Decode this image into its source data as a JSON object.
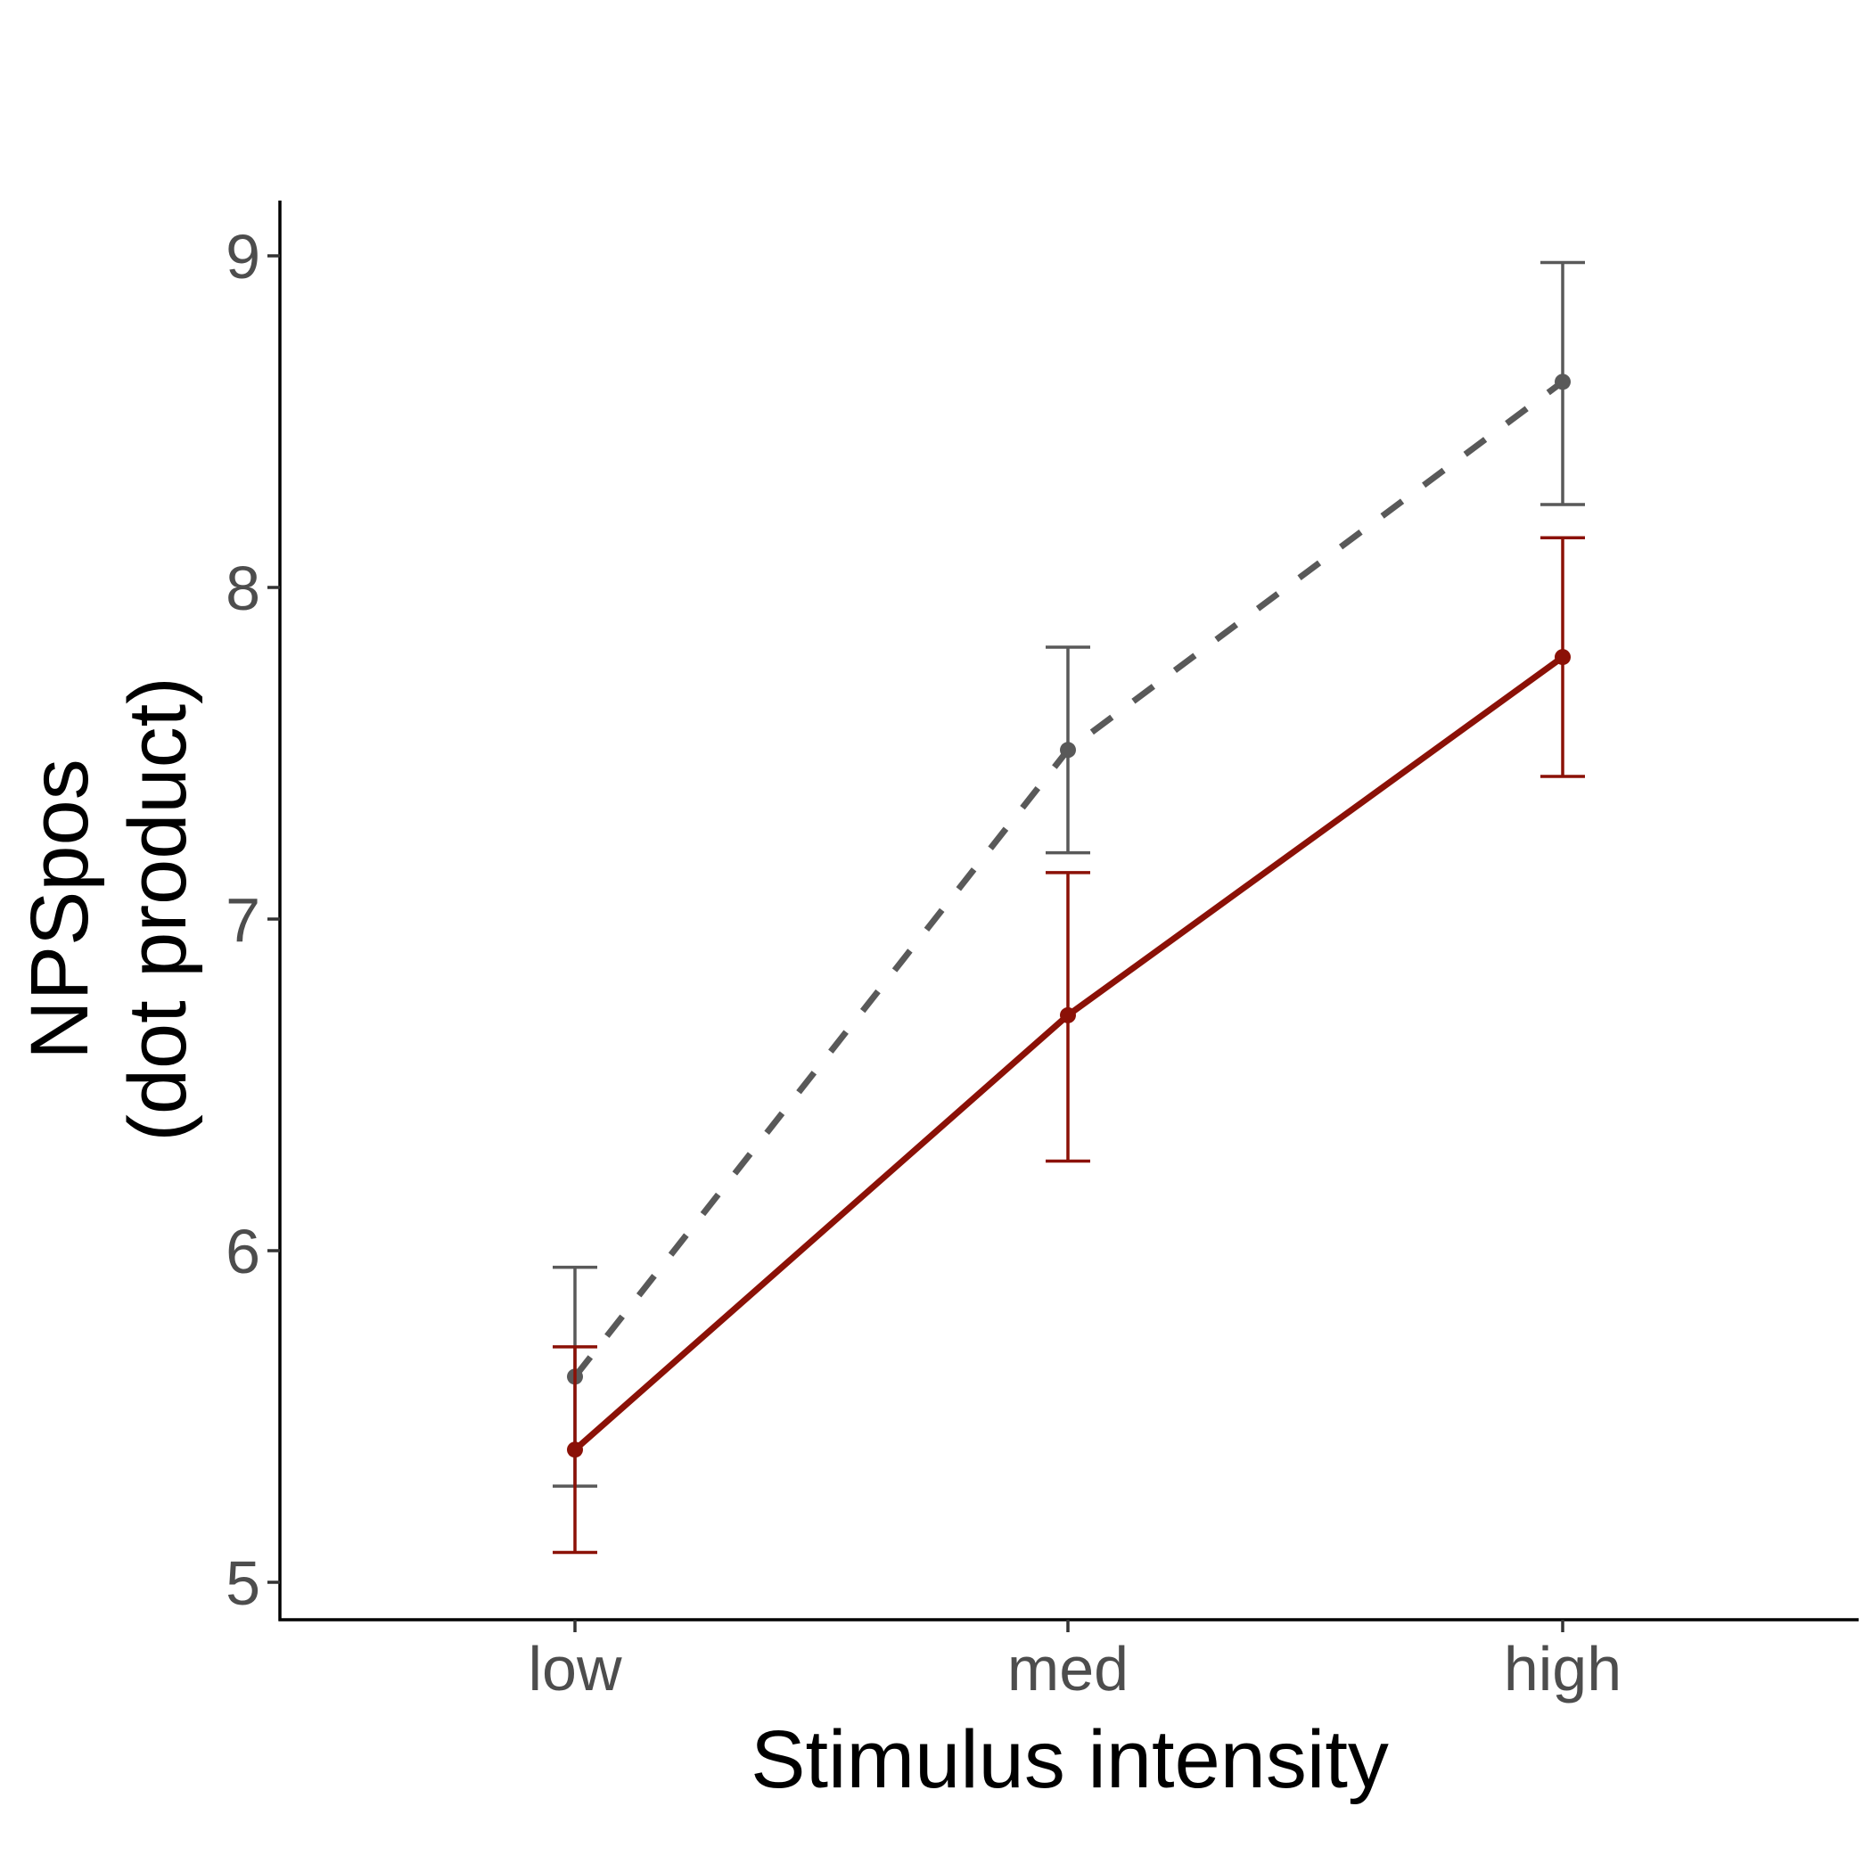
{
  "chart_data": {
    "type": "line",
    "title": "",
    "xlabel": "Stimulus intensity",
    "ylabel": [
      "NPSpos",
      "(dot product)"
    ],
    "categories": [
      "low",
      "med",
      "high"
    ],
    "ylim": [
      4.9,
      9.2
    ],
    "yticks": [
      5,
      6,
      7,
      8,
      9
    ],
    "grid": false,
    "legend": "none",
    "series": [
      {
        "color": "#595959",
        "linestyle": "dashed",
        "values": [
          5.62,
          7.51,
          8.62
        ],
        "error_low": [
          5.29,
          7.2,
          8.25
        ],
        "error_high": [
          5.95,
          7.82,
          8.98
        ]
      },
      {
        "color": "#8b1107",
        "linestyle": "solid",
        "values": [
          5.4,
          6.71,
          7.79
        ],
        "error_low": [
          5.09,
          6.27,
          7.43
        ],
        "error_high": [
          5.71,
          7.14,
          8.15
        ]
      }
    ]
  }
}
